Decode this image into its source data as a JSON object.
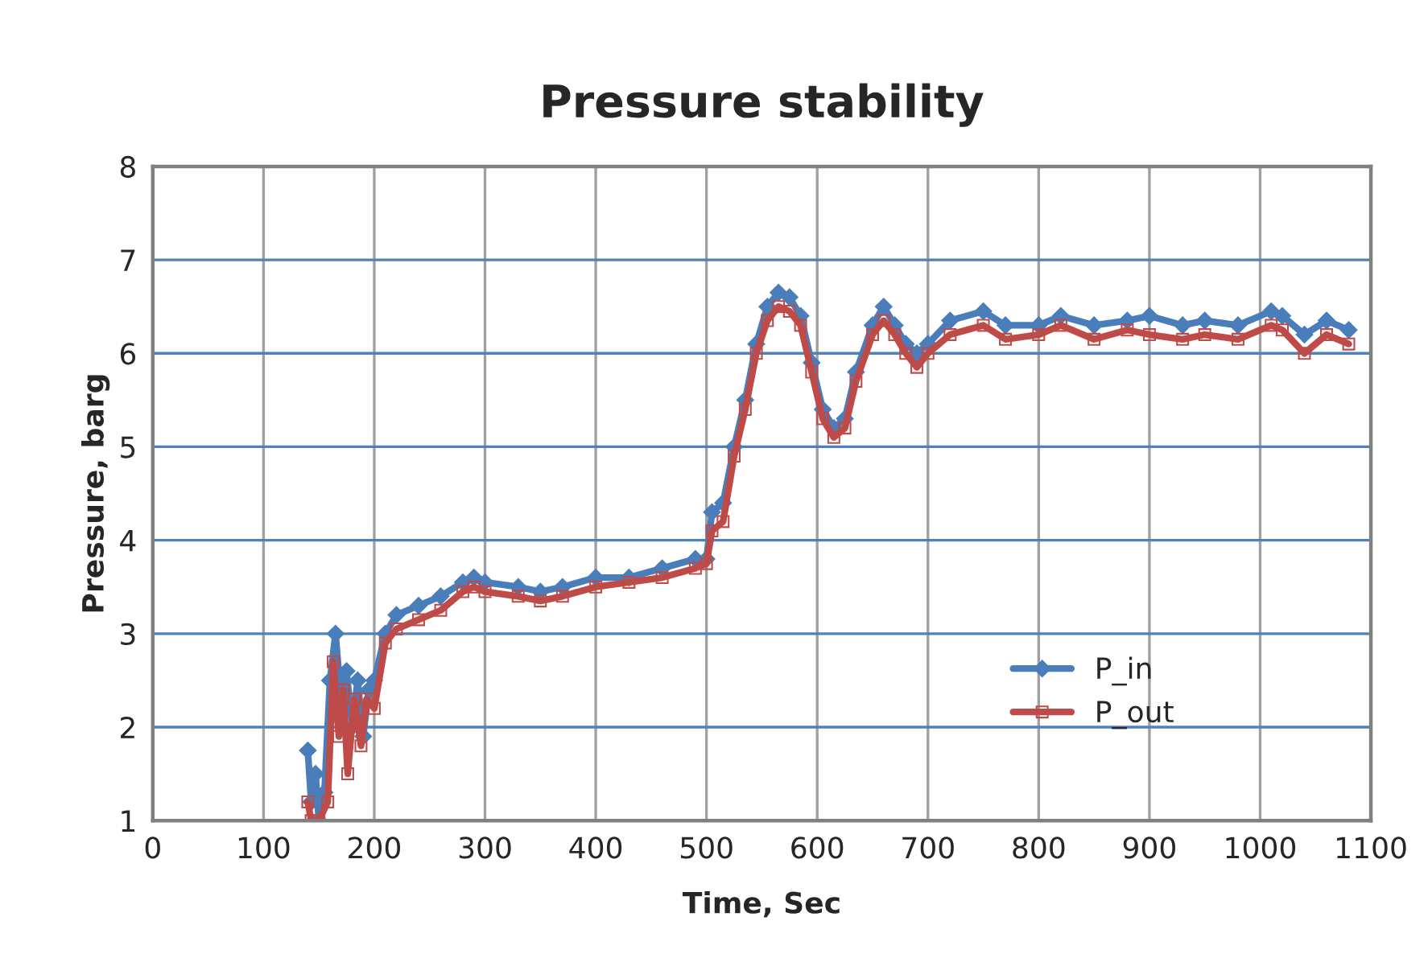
{
  "chart_data": {
    "type": "line",
    "title": "Pressure stability",
    "xlabel": "Time, Sec",
    "ylabel": "Pressure, barg",
    "xlim": [
      0,
      1100
    ],
    "xticks": [
      0,
      100,
      200,
      300,
      400,
      500,
      600,
      700,
      800,
      900,
      1000,
      1100
    ],
    "ylim": [
      1,
      8
    ],
    "yticks": [
      1,
      2,
      3,
      4,
      5,
      6,
      7,
      8
    ],
    "grid": true,
    "legend": "lower right",
    "series": [
      {
        "name": "P_in",
        "color": "#4a7ebb",
        "marker": "diamond",
        "x": [
          140,
          143,
          147,
          150,
          155,
          160,
          165,
          170,
          175,
          180,
          185,
          190,
          195,
          200,
          210,
          220,
          240,
          260,
          280,
          290,
          300,
          330,
          350,
          370,
          400,
          430,
          460,
          490,
          500,
          505,
          515,
          525,
          535,
          545,
          555,
          565,
          575,
          585,
          595,
          605,
          615,
          625,
          635,
          650,
          660,
          670,
          680,
          690,
          700,
          720,
          750,
          770,
          800,
          820,
          850,
          880,
          900,
          930,
          950,
          980,
          1010,
          1020,
          1040,
          1060,
          1080
        ],
        "values": [
          1.75,
          1.2,
          1.5,
          1.0,
          1.3,
          2.5,
          3.0,
          2.3,
          2.6,
          2.0,
          2.5,
          1.9,
          2.4,
          2.5,
          3.0,
          3.2,
          3.3,
          3.4,
          3.55,
          3.6,
          3.55,
          3.5,
          3.45,
          3.5,
          3.6,
          3.6,
          3.7,
          3.8,
          3.8,
          4.3,
          4.4,
          5.0,
          5.5,
          6.1,
          6.5,
          6.65,
          6.6,
          6.4,
          5.9,
          5.4,
          5.2,
          5.3,
          5.8,
          6.3,
          6.5,
          6.3,
          6.1,
          6.0,
          6.1,
          6.35,
          6.45,
          6.3,
          6.3,
          6.4,
          6.3,
          6.35,
          6.4,
          6.3,
          6.35,
          6.3,
          6.45,
          6.4,
          6.2,
          6.35,
          6.25
        ]
      },
      {
        "name": "P_out",
        "color": "#be4b48",
        "marker": "square",
        "x": [
          140,
          143,
          150,
          158,
          163,
          168,
          172,
          176,
          182,
          188,
          193,
          200,
          210,
          220,
          240,
          260,
          280,
          290,
          300,
          330,
          350,
          370,
          400,
          430,
          460,
          490,
          500,
          505,
          515,
          525,
          535,
          545,
          555,
          565,
          575,
          585,
          595,
          605,
          615,
          625,
          635,
          650,
          660,
          670,
          680,
          690,
          700,
          720,
          750,
          770,
          800,
          820,
          850,
          880,
          900,
          930,
          950,
          980,
          1010,
          1020,
          1040,
          1060,
          1080
        ],
        "values": [
          1.2,
          1.0,
          1.0,
          1.2,
          2.7,
          1.9,
          2.4,
          1.5,
          2.3,
          1.8,
          2.3,
          2.2,
          2.9,
          3.05,
          3.15,
          3.25,
          3.45,
          3.5,
          3.45,
          3.4,
          3.35,
          3.4,
          3.5,
          3.55,
          3.6,
          3.7,
          3.75,
          4.1,
          4.2,
          4.9,
          5.4,
          6.0,
          6.35,
          6.5,
          6.45,
          6.3,
          5.8,
          5.3,
          5.1,
          5.2,
          5.7,
          6.2,
          6.35,
          6.2,
          6.0,
          5.85,
          6.0,
          6.2,
          6.3,
          6.15,
          6.2,
          6.3,
          6.15,
          6.25,
          6.2,
          6.15,
          6.2,
          6.15,
          6.3,
          6.25,
          6.0,
          6.2,
          6.1
        ]
      }
    ]
  }
}
